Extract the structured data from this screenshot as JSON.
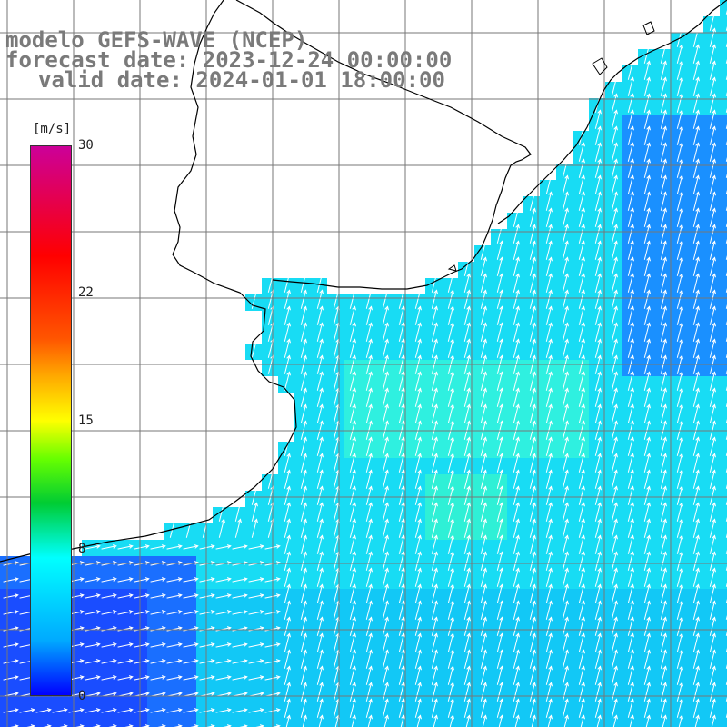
{
  "title": {
    "line1": "modelo GEFS-WAVE (NCEP)",
    "line2": "forecast date: 2023-12-24 00:00:00",
    "line3": "valid date: 2024-01-01 18:00:00"
  },
  "colorbar": {
    "unit": "[m/s]",
    "ticks": [
      {
        "label": "30",
        "value": 30
      },
      {
        "label": "22",
        "value": 22
      },
      {
        "label": "15",
        "value": 15
      },
      {
        "label": "8",
        "value": 8
      },
      {
        "label": "0",
        "value": 0
      }
    ],
    "range": [
      0,
      30
    ]
  },
  "colors": {
    "land": "#ffffff",
    "grid": "#777777",
    "coast": "#000000",
    "arrow": "#ffffff",
    "title": "#7a7a7a"
  },
  "map": {
    "field": "wind speed",
    "typical_speed_ms": [
      5,
      12
    ],
    "grid_lines": "on"
  }
}
